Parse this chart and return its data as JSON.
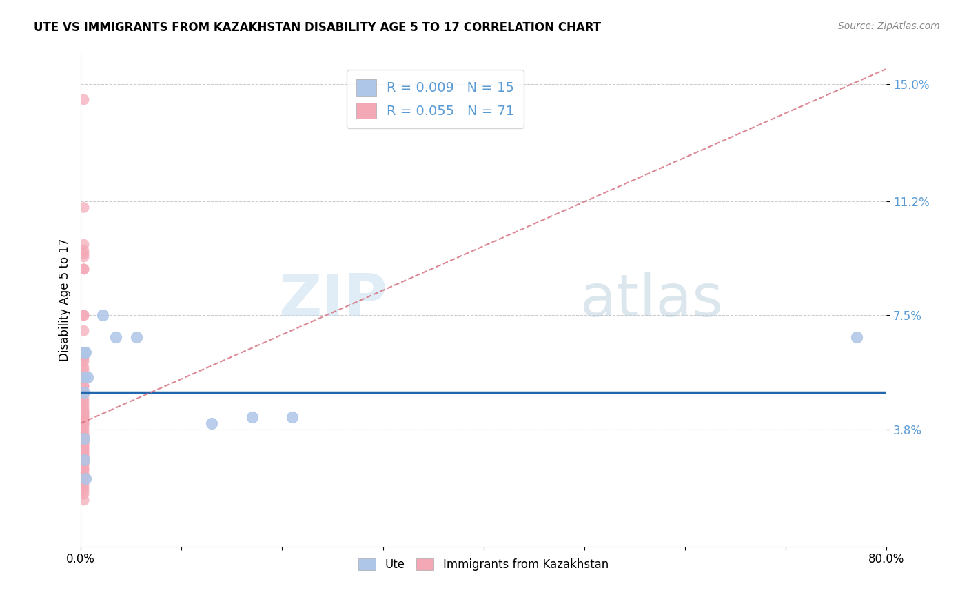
{
  "title": "UTE VS IMMIGRANTS FROM KAZAKHSTAN DISABILITY AGE 5 TO 17 CORRELATION CHART",
  "source": "Source: ZipAtlas.com",
  "ylabel": "Disability Age 5 to 17",
  "xlabel": "",
  "xlim": [
    0.0,
    0.8
  ],
  "ylim": [
    0.0,
    0.16
  ],
  "yticks": [
    0.038,
    0.075,
    0.112,
    0.15
  ],
  "ytick_labels": [
    "3.8%",
    "7.5%",
    "11.2%",
    "15.0%"
  ],
  "xticks": [
    0.0,
    0.1,
    0.2,
    0.3,
    0.4,
    0.5,
    0.6,
    0.7,
    0.8
  ],
  "xtick_labels": [
    "0.0%",
    "",
    "",
    "",
    "",
    "",
    "",
    "",
    "80.0%"
  ],
  "legend_r_blue": "R = 0.009",
  "legend_n_blue": "N = 15",
  "legend_r_pink": "R = 0.055",
  "legend_n_pink": "N = 71",
  "blue_color": "#aec6e8",
  "pink_color": "#f4a7b5",
  "trend_blue_color": "#2166ac",
  "trend_pink_color": "#d4697a",
  "watermark_zip": "ZIP",
  "watermark_atlas": "atlas",
  "blue_scatter_x": [
    0.003,
    0.004,
    0.005,
    0.007,
    0.022,
    0.035,
    0.055,
    0.13,
    0.17,
    0.21,
    0.77,
    0.003,
    0.005,
    0.003,
    0.003
  ],
  "blue_scatter_y": [
    0.063,
    0.055,
    0.063,
    0.055,
    0.075,
    0.068,
    0.068,
    0.04,
    0.042,
    0.042,
    0.068,
    0.05,
    0.022,
    0.028,
    0.035
  ],
  "pink_scatter_x": [
    0.003,
    0.003,
    0.003,
    0.003,
    0.003,
    0.003,
    0.003,
    0.003,
    0.003,
    0.003,
    0.003,
    0.003,
    0.003,
    0.003,
    0.003,
    0.003,
    0.003,
    0.003,
    0.003,
    0.003,
    0.003,
    0.003,
    0.003,
    0.003,
    0.003,
    0.003,
    0.003,
    0.003,
    0.003,
    0.003,
    0.003,
    0.003,
    0.003,
    0.003,
    0.003,
    0.003,
    0.003,
    0.003,
    0.003,
    0.003,
    0.003,
    0.003,
    0.003,
    0.003,
    0.003,
    0.003,
    0.003,
    0.003,
    0.003,
    0.003,
    0.003,
    0.003,
    0.003,
    0.003,
    0.003,
    0.003,
    0.003,
    0.003,
    0.003,
    0.003,
    0.003,
    0.003,
    0.003,
    0.003,
    0.003,
    0.003,
    0.003,
    0.003,
    0.003,
    0.003,
    0.003
  ],
  "pink_scatter_y": [
    0.145,
    0.11,
    0.098,
    0.096,
    0.095,
    0.094,
    0.09,
    0.09,
    0.075,
    0.075,
    0.07,
    0.063,
    0.063,
    0.062,
    0.062,
    0.061,
    0.06,
    0.058,
    0.057,
    0.055,
    0.055,
    0.052,
    0.052,
    0.05,
    0.048,
    0.047,
    0.046,
    0.045,
    0.044,
    0.044,
    0.043,
    0.043,
    0.042,
    0.042,
    0.041,
    0.04,
    0.04,
    0.039,
    0.038,
    0.037,
    0.036,
    0.036,
    0.035,
    0.034,
    0.034,
    0.033,
    0.033,
    0.032,
    0.032,
    0.031,
    0.031,
    0.03,
    0.03,
    0.029,
    0.028,
    0.028,
    0.027,
    0.027,
    0.026,
    0.025,
    0.025,
    0.024,
    0.023,
    0.023,
    0.022,
    0.021,
    0.02,
    0.019,
    0.018,
    0.017,
    0.015
  ],
  "blue_trend_x": [
    0.0,
    0.8
  ],
  "blue_trend_y": [
    0.05,
    0.05
  ],
  "pink_trend_x": [
    0.0,
    0.8
  ],
  "pink_trend_y": [
    0.04,
    0.155
  ],
  "grid_color": "#cccccc",
  "spine_color": "#cccccc",
  "ytick_color": "#5b9bd5",
  "title_fontsize": 12,
  "source_fontsize": 10,
  "tick_fontsize": 12
}
